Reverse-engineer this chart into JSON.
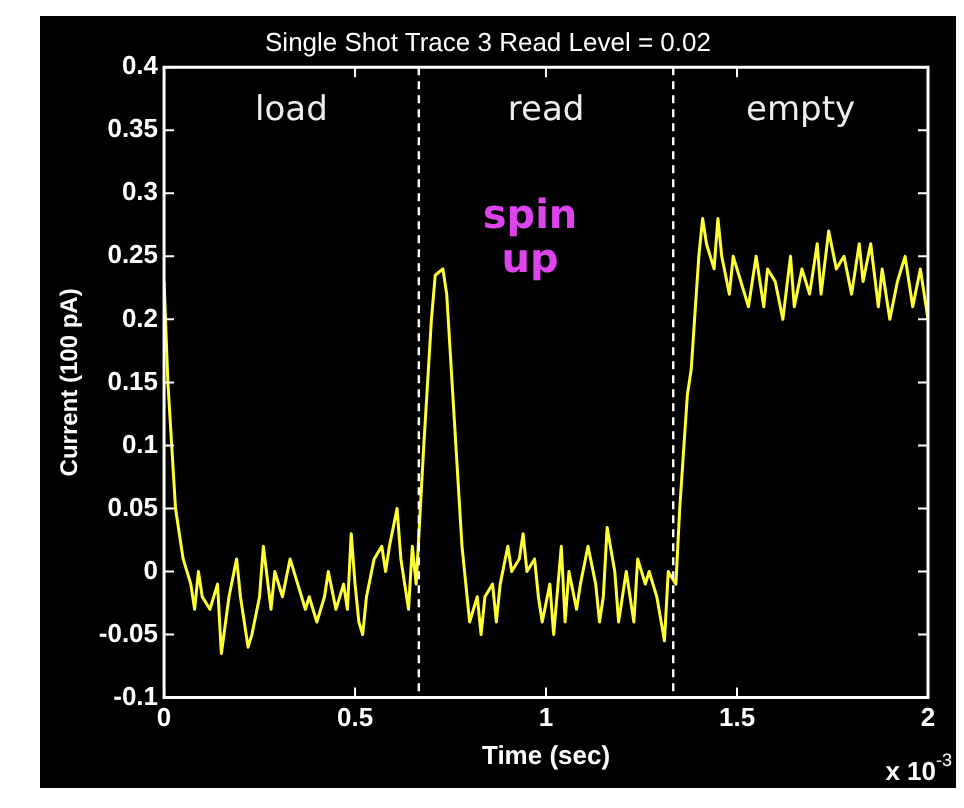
{
  "chart_data": {
    "type": "line",
    "title": "Single Shot Trace 3 Read Level = 0.02",
    "xlabel": "Time (sec)",
    "ylabel": "Current (100 pA)",
    "xlim": [
      0,
      2
    ],
    "xticks": [
      0,
      0.5,
      1,
      1.5,
      2
    ],
    "ylim": [
      -0.1,
      0.4
    ],
    "yticks": [
      -0.1,
      -0.05,
      0,
      0.05,
      0.1,
      0.15,
      0.2,
      0.25,
      0.3,
      0.35,
      0.4
    ],
    "grid": false,
    "legend": false,
    "marker": "none",
    "line_style": "solid",
    "ref_lines": [
      {
        "axis": "x",
        "value": 0.667,
        "color": "#ffffff",
        "line_style": "dashed"
      },
      {
        "axis": "x",
        "value": 1.333,
        "color": "#ffffff",
        "line_style": "dashed"
      }
    ],
    "annotations": [
      "load",
      "read",
      "empty",
      "spin up",
      "x 10$^{-3}$"
    ],
    "series": [
      {
        "color": "#ffff33",
        "x": [
          0,
          0.01,
          0.03,
          0.05,
          0.07,
          0.08,
          0.09,
          0.1,
          0.12,
          0.14,
          0.15,
          0.17,
          0.19,
          0.2,
          0.22,
          0.23,
          0.25,
          0.26,
          0.28,
          0.29,
          0.31,
          0.33,
          0.35,
          0.37,
          0.38,
          0.4,
          0.42,
          0.43,
          0.45,
          0.47,
          0.48,
          0.49,
          0.5,
          0.51,
          0.52,
          0.53,
          0.55,
          0.57,
          0.58,
          0.59,
          0.61,
          0.62,
          0.64,
          0.65,
          0.66,
          0.68,
          0.7,
          0.71,
          0.73,
          0.74,
          0.76,
          0.78,
          0.79,
          0.8,
          0.82,
          0.83,
          0.84,
          0.86,
          0.87,
          0.88,
          0.9,
          0.91,
          0.93,
          0.94,
          0.95,
          0.97,
          0.98,
          0.99,
          1.01,
          1.02,
          1.04,
          1.05,
          1.06,
          1.08,
          1.09,
          1.11,
          1.13,
          1.14,
          1.15,
          1.16,
          1.18,
          1.19,
          1.21,
          1.23,
          1.24,
          1.26,
          1.27,
          1.28,
          1.29,
          1.31,
          1.32,
          1.34,
          1.35,
          1.37,
          1.38,
          1.4,
          1.41,
          1.42,
          1.44,
          1.45,
          1.46,
          1.48,
          1.49,
          1.51,
          1.53,
          1.55,
          1.57,
          1.58,
          1.6,
          1.62,
          1.64,
          1.65,
          1.67,
          1.69,
          1.71,
          1.72,
          1.74,
          1.76,
          1.78,
          1.8,
          1.82,
          1.83,
          1.85,
          1.87,
          1.88,
          1.9,
          1.92,
          1.94,
          1.96,
          1.98,
          2.0
        ],
        "values": [
          0.23,
          0.15,
          0.05,
          0.01,
          -0.01,
          -0.03,
          0.0,
          -0.02,
          -0.03,
          -0.01,
          -0.065,
          -0.02,
          0.01,
          -0.02,
          -0.06,
          -0.05,
          -0.02,
          0.02,
          -0.03,
          0.0,
          -0.02,
          0.01,
          -0.01,
          -0.03,
          -0.02,
          -0.04,
          -0.02,
          0.0,
          -0.03,
          -0.01,
          -0.03,
          0.03,
          -0.01,
          -0.04,
          -0.05,
          -0.02,
          0.01,
          0.02,
          0.0,
          0.02,
          0.05,
          0.01,
          -0.03,
          0.02,
          -0.01,
          0.1,
          0.2,
          0.235,
          0.24,
          0.22,
          0.12,
          0.02,
          -0.01,
          -0.04,
          -0.02,
          -0.05,
          -0.02,
          -0.01,
          -0.04,
          -0.01,
          0.02,
          0.0,
          0.01,
          0.03,
          0.0,
          0.01,
          -0.02,
          -0.04,
          -0.01,
          -0.05,
          0.02,
          -0.04,
          0.0,
          -0.03,
          -0.01,
          0.02,
          -0.01,
          -0.04,
          -0.02,
          0.035,
          0.0,
          -0.04,
          0.0,
          -0.04,
          0.01,
          -0.01,
          0.0,
          -0.01,
          -0.02,
          -0.055,
          0.0,
          -0.01,
          0.05,
          0.14,
          0.16,
          0.25,
          0.28,
          0.26,
          0.24,
          0.28,
          0.25,
          0.22,
          0.25,
          0.23,
          0.21,
          0.25,
          0.21,
          0.24,
          0.23,
          0.2,
          0.25,
          0.21,
          0.24,
          0.22,
          0.26,
          0.22,
          0.27,
          0.24,
          0.25,
          0.22,
          0.26,
          0.23,
          0.26,
          0.21,
          0.24,
          0.2,
          0.23,
          0.25,
          0.21,
          0.24,
          0.2
        ]
      }
    ]
  }
}
